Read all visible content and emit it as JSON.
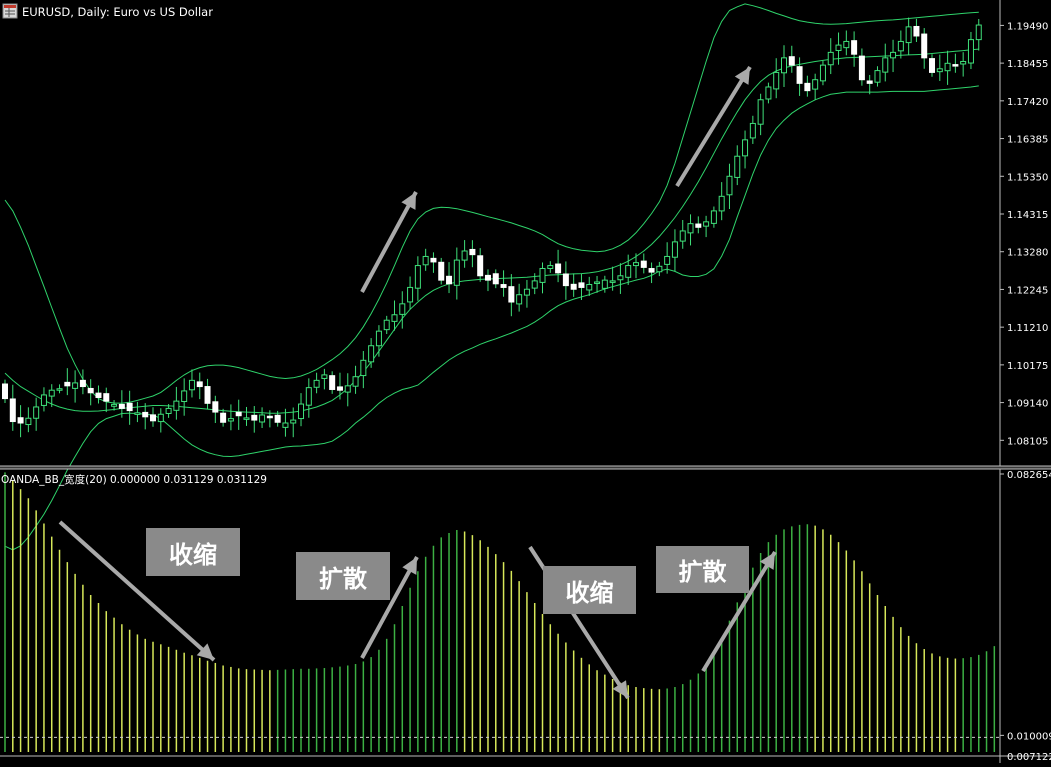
{
  "window": {
    "title": "EURUSD, Daily:  Euro vs US Dollar"
  },
  "indicator": {
    "label": "OANDA_BB_宽度(20) 0.000000 0.031129 0.031129"
  },
  "annotations": [
    "收缩",
    "扩散",
    "收缩",
    "扩散"
  ],
  "chart_data": [
    {
      "type": "candlestick",
      "title": "EURUSD, Daily:  Euro vs US Dollar",
      "series": [
        {
          "name": "EURUSD"
        },
        {
          "name": "Bollinger Bands (20)"
        }
      ],
      "y_ticks": [
        "1.19490",
        "1.18455",
        "1.17420",
        "1.16385",
        "1.15350",
        "1.14315",
        "1.13280",
        "1.12245",
        "1.11210",
        "1.10175",
        "1.09140",
        "1.08105"
      ],
      "ylim": [
        1.074,
        1.2005
      ],
      "closes": [
        1.0925,
        1.0862,
        1.0858,
        1.0871,
        1.0902,
        1.0935,
        1.0948,
        1.0952,
        1.096,
        1.0968,
        1.0958,
        1.0941,
        1.0928,
        1.0918,
        1.0909,
        1.0898,
        1.0892,
        1.0886,
        1.0875,
        1.0864,
        1.0882,
        1.0898,
        1.0918,
        1.0946,
        1.0975,
        1.0958,
        1.0912,
        1.0888,
        1.086,
        1.087,
        1.0878,
        1.0872,
        1.0866,
        1.088,
        1.0876,
        1.086,
        1.0858,
        1.0866,
        1.091,
        1.0955,
        1.0975,
        1.099,
        1.095,
        1.0948,
        1.096,
        1.0985,
        1.103,
        1.107,
        1.111,
        1.114,
        1.1155,
        1.1185,
        1.123,
        1.129,
        1.1315,
        1.13,
        1.125,
        1.124,
        1.1305,
        1.133,
        1.132,
        1.1262,
        1.125,
        1.124,
        1.123,
        1.119,
        1.121,
        1.1225,
        1.1248,
        1.1282,
        1.129,
        1.127,
        1.1235,
        1.1225,
        1.123,
        1.1238,
        1.1245,
        1.125,
        1.1248,
        1.1262,
        1.129,
        1.1298,
        1.1285,
        1.1272,
        1.1288,
        1.1315,
        1.1355,
        1.1385,
        1.1405,
        1.1395,
        1.141,
        1.144,
        1.148,
        1.1535,
        1.159,
        1.1635,
        1.168,
        1.1745,
        1.178,
        1.182,
        1.186,
        1.184,
        1.179,
        1.177,
        1.18,
        1.184,
        1.1875,
        1.1895,
        1.1905,
        1.187,
        1.18,
        1.179,
        1.1825,
        1.186,
        1.1875,
        1.1905,
        1.1945,
        1.192,
        1.186,
        1.182,
        1.183,
        1.1845,
        1.184,
        1.185,
        1.191,
        1.195
      ],
      "upper_band": [
        1.147,
        1.144,
        1.1395,
        1.1345,
        1.1288,
        1.1232,
        1.1175,
        1.1118,
        1.1063,
        1.1018,
        1.0978,
        1.0946,
        1.0925,
        1.0916,
        1.0913,
        1.0912,
        1.0915,
        1.092,
        1.0926,
        1.0932,
        1.0942,
        1.0958,
        1.0975,
        1.099,
        1.1002,
        1.101,
        1.1015,
        1.1017,
        1.1017,
        1.1014,
        1.101,
        1.1004,
        1.0998,
        1.0992,
        1.0986,
        1.0982,
        1.098,
        1.0982,
        1.0987,
        1.0995,
        1.1005,
        1.1018,
        1.1032,
        1.1048,
        1.1068,
        1.1092,
        1.1122,
        1.1158,
        1.1198,
        1.1242,
        1.129,
        1.134,
        1.1385,
        1.1418,
        1.1437,
        1.1447,
        1.145,
        1.1449,
        1.1446,
        1.1441,
        1.1436,
        1.143,
        1.1424,
        1.1419,
        1.1413,
        1.1407,
        1.14,
        1.1393,
        1.1385,
        1.1375,
        1.1362,
        1.135,
        1.1342,
        1.1336,
        1.1332,
        1.133,
        1.1328,
        1.133,
        1.1336,
        1.1346,
        1.136,
        1.138,
        1.1405,
        1.1433,
        1.1465,
        1.151,
        1.157,
        1.164,
        1.171,
        1.178,
        1.185,
        1.1915,
        1.196,
        1.199,
        1.2,
        1.2008,
        1.2003,
        1.1997,
        1.199,
        1.1982,
        1.1975,
        1.1968,
        1.1962,
        1.1958,
        1.1955,
        1.1953,
        1.1952,
        1.1953,
        1.1954,
        1.1956,
        1.1958,
        1.196,
        1.1962,
        1.1963,
        1.1964,
        1.1966,
        1.1968,
        1.197,
        1.1972,
        1.1974,
        1.1976,
        1.1978,
        1.198,
        1.1982,
        1.1984,
        1.1985
      ],
      "middle_band": [
        1.0995,
        1.0975,
        1.0958,
        1.0945,
        1.0932,
        1.092,
        1.091,
        1.0902,
        1.0896,
        1.0892,
        1.089,
        1.089,
        1.0891,
        1.0893,
        1.0895,
        1.0898,
        1.09,
        1.0902,
        1.0904,
        1.0906,
        1.0906,
        1.0905,
        1.0904,
        1.0902,
        1.09,
        1.0898,
        1.0896,
        1.0894,
        1.0892,
        1.089,
        1.0889,
        1.0888,
        1.0887,
        1.0886,
        1.0885,
        1.0885,
        1.0886,
        1.0888,
        1.0891,
        1.0896,
        1.0902,
        1.091,
        1.092,
        1.0935,
        1.0953,
        1.0975,
        1.0998,
        1.1025,
        1.1055,
        1.1085,
        1.1115,
        1.1145,
        1.117,
        1.119,
        1.1208,
        1.1222,
        1.1232,
        1.124,
        1.1245,
        1.1248,
        1.125,
        1.1252,
        1.1253,
        1.1254,
        1.1255,
        1.1256,
        1.1257,
        1.1258,
        1.126,
        1.1262,
        1.1264,
        1.1265,
        1.1266,
        1.1267,
        1.1268,
        1.127,
        1.1273,
        1.1278,
        1.1284,
        1.1292,
        1.1302,
        1.1315,
        1.133,
        1.1348,
        1.137,
        1.1395,
        1.1422,
        1.1452,
        1.1485,
        1.152,
        1.1558,
        1.1598,
        1.1638,
        1.1676,
        1.1712,
        1.1745,
        1.1772,
        1.1795,
        1.1812,
        1.1824,
        1.1832,
        1.1838,
        1.1842,
        1.1846,
        1.185,
        1.1853,
        1.1856,
        1.1858,
        1.186,
        1.1861,
        1.1862,
        1.1863,
        1.1864,
        1.1865,
        1.1866,
        1.1867,
        1.1868,
        1.1869,
        1.187,
        1.1872,
        1.1874,
        1.1876,
        1.1878,
        1.188,
        1.1882,
        1.1884
      ],
      "lower_band": [
        1.052,
        1.051,
        1.0521,
        1.0545,
        1.0576,
        1.0608,
        1.0645,
        1.0686,
        1.0729,
        1.0766,
        1.0802,
        1.0834,
        1.0857,
        1.087,
        1.0877,
        1.0884,
        1.0885,
        1.0884,
        1.0882,
        1.088,
        1.087,
        1.0852,
        1.0833,
        1.0814,
        1.0798,
        1.0786,
        1.0777,
        1.0771,
        1.0767,
        1.0766,
        1.0768,
        1.0772,
        1.0776,
        1.078,
        1.0784,
        1.0788,
        1.0792,
        1.0794,
        1.0795,
        1.0797,
        1.0799,
        1.0802,
        1.0808,
        1.0822,
        1.0838,
        1.0858,
        1.0874,
        1.0892,
        1.0912,
        1.0928,
        1.094,
        1.095,
        1.0955,
        1.0962,
        1.0979,
        1.0997,
        1.1014,
        1.1031,
        1.1044,
        1.1055,
        1.1064,
        1.1074,
        1.1082,
        1.1089,
        1.1097,
        1.1105,
        1.1114,
        1.1123,
        1.1135,
        1.1149,
        1.1166,
        1.118,
        1.119,
        1.1198,
        1.1204,
        1.121,
        1.1218,
        1.1226,
        1.1232,
        1.1238,
        1.1244,
        1.125,
        1.1255,
        1.1263,
        1.1275,
        1.128,
        1.1274,
        1.1264,
        1.126,
        1.126,
        1.1266,
        1.1281,
        1.1316,
        1.1362,
        1.1424,
        1.1482,
        1.1541,
        1.1593,
        1.1634,
        1.1666,
        1.1689,
        1.1708,
        1.1722,
        1.1734,
        1.1745,
        1.1753,
        1.176,
        1.1763,
        1.1766,
        1.1766,
        1.1766,
        1.1766,
        1.1766,
        1.1767,
        1.1768,
        1.1768,
        1.1768,
        1.1768,
        1.1768,
        1.177,
        1.1772,
        1.1774,
        1.1776,
        1.1778,
        1.178,
        1.1783
      ]
    },
    {
      "type": "bar",
      "title": "OANDA_BB_宽度(20) 0.000000 0.031129 0.031129",
      "y_ticks": [
        "0.082654",
        "0.010009",
        "0.007122"
      ],
      "ylim": [
        0.006,
        0.0827
      ],
      "values": [
        0.0826,
        0.0805,
        0.078,
        0.0755,
        0.0722,
        0.0686,
        0.065,
        0.0614,
        0.058,
        0.0548,
        0.0518,
        0.049,
        0.0468,
        0.0446,
        0.0428,
        0.041,
        0.0395,
        0.0382,
        0.037,
        0.0362,
        0.0355,
        0.0348,
        0.034,
        0.0332,
        0.0325,
        0.0318,
        0.031,
        0.0304,
        0.0297,
        0.0293,
        0.0289,
        0.0287,
        0.0286,
        0.0285,
        0.0284,
        0.0285,
        0.0286,
        0.0287,
        0.0288,
        0.0288,
        0.0289,
        0.029,
        0.0292,
        0.0294,
        0.0297,
        0.0301,
        0.0308,
        0.032,
        0.034,
        0.037,
        0.041,
        0.046,
        0.051,
        0.0555,
        0.0595,
        0.0625,
        0.0648,
        0.066,
        0.0668,
        0.0664,
        0.0654,
        0.064,
        0.0622,
        0.0602,
        0.058,
        0.0556,
        0.0528,
        0.0498,
        0.0468,
        0.0438,
        0.041,
        0.0384,
        0.036,
        0.0338,
        0.0318,
        0.03,
        0.0284,
        0.0272,
        0.026,
        0.025,
        0.0243,
        0.0238,
        0.0235,
        0.0233,
        0.0232,
        0.0234,
        0.0238,
        0.0246,
        0.0258,
        0.0275,
        0.0298,
        0.033,
        0.0372,
        0.042,
        0.047,
        0.052,
        0.0565,
        0.0605,
        0.0635,
        0.0655,
        0.067,
        0.0678,
        0.0682,
        0.0684,
        0.068,
        0.067,
        0.0655,
        0.0635,
        0.0612,
        0.0585,
        0.0555,
        0.0522,
        0.049,
        0.046,
        0.043,
        0.0402,
        0.0378,
        0.0358,
        0.0342,
        0.033,
        0.0322,
        0.0318,
        0.0316,
        0.0317,
        0.032,
        0.0326,
        0.0336,
        0.035
      ],
      "ylabel": "",
      "xlabel": ""
    }
  ]
}
